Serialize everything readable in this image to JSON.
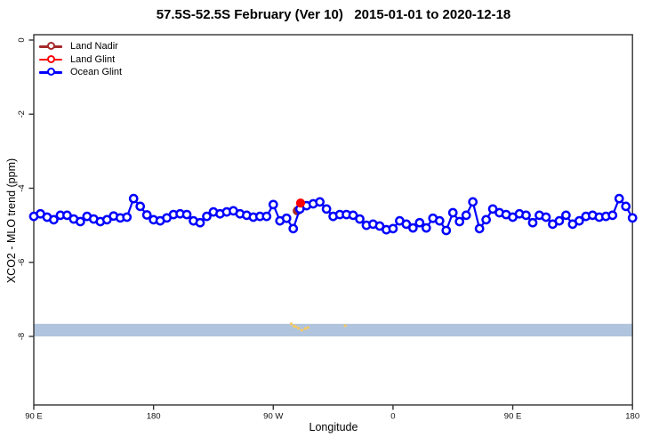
{
  "title": "57.5S-52.5S February (Ver 10)   2015-01-01 to 2020-12-18",
  "x_axis": {
    "label": "Longitude",
    "ticks": [
      {
        "pos": 90,
        "label": "90 E"
      },
      {
        "pos": 180,
        "label": "180"
      },
      {
        "pos": 270,
        "label": "90 W"
      },
      {
        "pos": 360,
        "label": "0"
      },
      {
        "pos": 450,
        "label": "90 E"
      },
      {
        "pos": 540,
        "label": "180"
      }
    ]
  },
  "y_axis": {
    "label": "XCO2 - MLO trend (ppm)",
    "ticks": [
      {
        "value": 0,
        "label": "0"
      },
      {
        "value": -2,
        "label": "-2"
      },
      {
        "value": -4,
        "label": "-4"
      },
      {
        "value": -6,
        "label": "-6"
      },
      {
        "value": -8,
        "label": "-8"
      }
    ]
  },
  "legend": [
    {
      "name": "Land Nadir",
      "color": "#A52A2A"
    },
    {
      "name": "Land Glint",
      "color": "#FF0000"
    },
    {
      "name": "Ocean Glint",
      "color": "#0000FF"
    }
  ],
  "colors": {
    "ocean": "#0000FF",
    "land_glint": "#FF0000",
    "land_nadir": "#A52A2A",
    "band": "#B0C4DE",
    "orange_marks": "#F6C95F",
    "frame": "#333333"
  },
  "chart_data": {
    "type": "line",
    "title": "57.5S-52.5S February (Ver 10)   2015-01-01 to 2020-12-18",
    "xlabel": "Longitude",
    "ylabel": "XCO2 - MLO trend (ppm)",
    "xlim": [
      90,
      540
    ],
    "ylim": [
      -9.85,
      0.15
    ],
    "grid": false,
    "legend_position": "top-left-inside",
    "x_tick_labels_wrapped": [
      "90 E",
      "180",
      "90 W",
      "0",
      "90 E",
      "180"
    ],
    "band": {
      "from": -7.66,
      "to": -8.0,
      "color": "#B0C4DE",
      "note": "horizontal shaded strip across full width"
    },
    "series": [
      {
        "name": "Ocean Glint",
        "color": "#0000FF",
        "marker": "open-circle",
        "x": [
          90,
          95,
          100,
          105,
          110,
          115,
          120,
          125,
          130,
          135,
          140,
          145,
          150,
          155,
          160,
          165,
          170,
          175,
          180,
          185,
          190,
          195,
          200,
          205,
          210,
          215,
          220,
          225,
          230,
          235,
          240,
          245,
          250,
          255,
          260,
          265,
          270,
          275,
          280,
          285,
          290,
          295,
          300,
          305,
          310,
          315,
          320,
          325,
          330,
          335,
          340,
          345,
          350,
          355,
          360,
          365,
          370,
          375,
          380,
          385,
          390,
          395,
          400,
          405,
          410,
          415,
          420,
          425,
          430,
          435,
          440,
          445,
          450,
          455,
          460,
          465,
          470,
          475,
          480,
          485,
          490,
          495,
          500,
          505,
          510,
          515,
          520,
          525,
          530,
          535,
          540
        ],
        "y": [
          -4.76,
          -4.69,
          -4.78,
          -4.85,
          -4.73,
          -4.73,
          -4.83,
          -4.9,
          -4.76,
          -4.83,
          -4.9,
          -4.85,
          -4.75,
          -4.8,
          -4.78,
          -4.28,
          -4.49,
          -4.72,
          -4.85,
          -4.88,
          -4.8,
          -4.71,
          -4.69,
          -4.71,
          -4.88,
          -4.93,
          -4.76,
          -4.64,
          -4.69,
          -4.64,
          -4.61,
          -4.69,
          -4.73,
          -4.78,
          -4.76,
          -4.76,
          -4.44,
          -4.88,
          -4.81,
          -5.09,
          -4.56,
          -4.47,
          -4.42,
          -4.37,
          -4.56,
          -4.76,
          -4.71,
          -4.71,
          -4.73,
          -4.83,
          -5.0,
          -4.97,
          -5.02,
          -5.12,
          -5.09,
          -4.88,
          -4.97,
          -5.07,
          -4.93,
          -5.07,
          -4.81,
          -4.88,
          -5.14,
          -4.66,
          -4.9,
          -4.73,
          -4.37,
          -5.09,
          -4.85,
          -4.56,
          -4.66,
          -4.71,
          -4.78,
          -4.69,
          -4.73,
          -4.93,
          -4.73,
          -4.78,
          -4.97,
          -4.88,
          -4.73,
          -4.97,
          -4.88,
          -4.76,
          -4.73,
          -4.78,
          -4.76,
          -4.73,
          -4.28,
          -4.49,
          -4.8
        ]
      },
      {
        "name": "Land Nadir",
        "color": "#A52A2A",
        "marker": "filled-circle",
        "x": [
          288
        ],
        "y": [
          -4.61
        ]
      },
      {
        "name": "Land Glint",
        "color": "#FF0000",
        "marker": "filled-circle",
        "x": [
          290.5
        ],
        "y": [
          -4.4
        ]
      }
    ],
    "orange_marks": [
      {
        "x": 283.5,
        "y": -7.66
      },
      {
        "x": 285.5,
        "y": -7.72
      },
      {
        "x": 287.0,
        "y": -7.74
      },
      {
        "x": 289.0,
        "y": -7.78
      },
      {
        "x": 291.5,
        "y": -7.83
      },
      {
        "x": 294.0,
        "y": -7.79
      },
      {
        "x": 296.0,
        "y": -7.76
      },
      {
        "x": 324.0,
        "y": -7.71
      }
    ]
  }
}
